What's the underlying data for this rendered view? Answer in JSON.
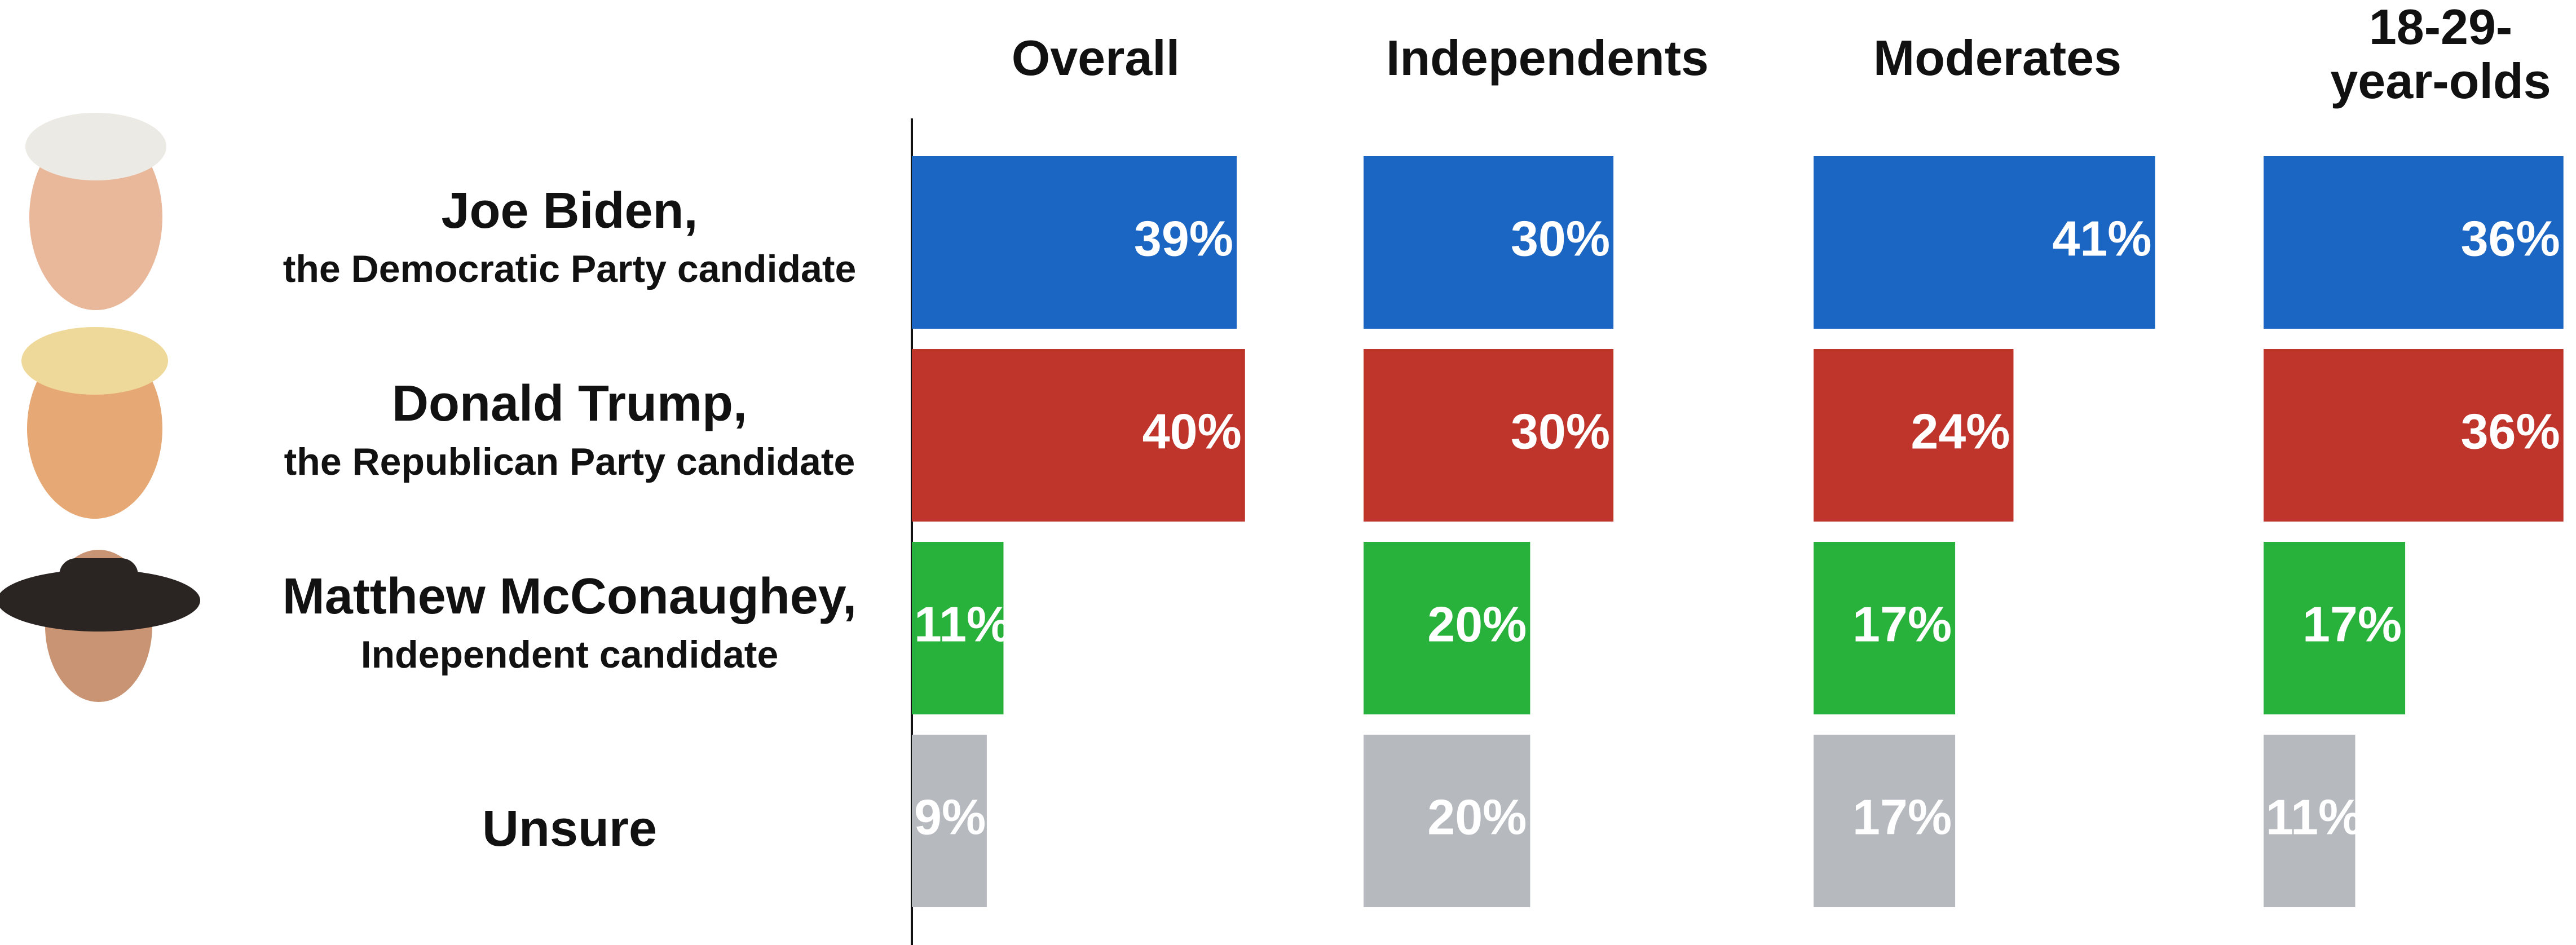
{
  "chart_data": {
    "type": "bar",
    "categories": [
      "Joe Biden,",
      "Donald Trump,",
      "Matthew McConaughey,",
      "Unsure"
    ],
    "category_subtitles": [
      "the Democratic Party candidate",
      "the Republican Party candidate",
      "Independent candidate",
      null
    ],
    "colors": [
      "#1b66c2",
      "#c0352b",
      "#28b23b",
      "#b6babf"
    ],
    "xlim": [
      0,
      54
    ],
    "series": [
      {
        "name": "Overall",
        "values": [
          39,
          40,
          11,
          9
        ],
        "value_labels": [
          "39%",
          "40%",
          "11%",
          "9%"
        ]
      },
      {
        "name": "Independents",
        "values": [
          30,
          30,
          20,
          20
        ],
        "value_labels": [
          "30%",
          "30%",
          "20%",
          "20%"
        ]
      },
      {
        "name": "Moderates",
        "values": [
          41,
          24,
          17,
          17
        ],
        "value_labels": [
          "41%",
          "24%",
          "17%",
          "17%"
        ]
      },
      {
        "name": "18-29-\nyear-olds",
        "values": [
          36,
          36,
          17,
          11
        ],
        "value_labels": [
          "36%",
          "36%",
          "17%",
          "11%"
        ]
      }
    ]
  }
}
